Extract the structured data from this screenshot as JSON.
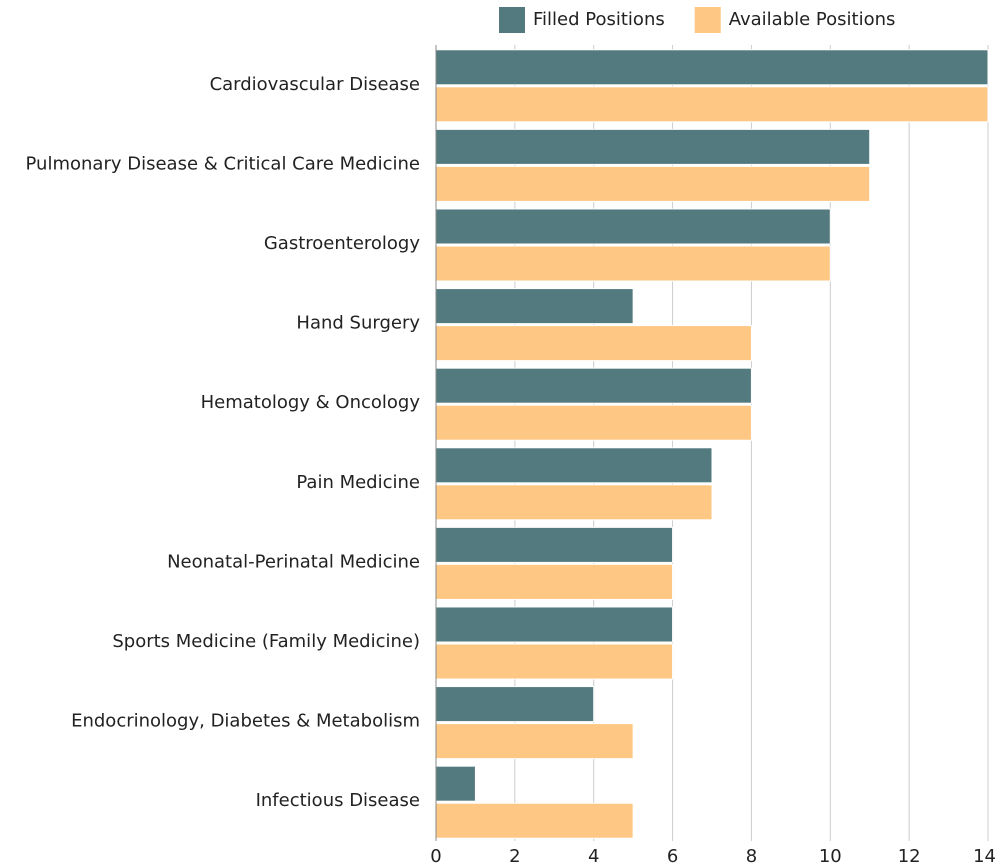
{
  "chart_data": {
    "type": "barh",
    "categories": [
      "Cardiovascular Disease",
      "Pulmonary Disease & Critical Care Medicine",
      "Gastroenterology",
      "Hand Surgery",
      "Hematology & Oncology",
      "Pain Medicine",
      "Neonatal-Perinatal Medicine",
      "Sports Medicine (Family Medicine)",
      "Endocrinology, Diabetes & Metabolism",
      "Infectious Disease"
    ],
    "series": [
      {
        "name": "Filled Positions",
        "color": "#537a7e",
        "values": [
          14,
          11,
          10,
          5,
          8,
          7,
          6,
          6,
          4,
          1
        ]
      },
      {
        "name": "Available Positions",
        "color": "#fec784",
        "values": [
          14,
          11,
          10,
          8,
          8,
          7,
          6,
          6,
          5,
          5
        ]
      }
    ],
    "xlim": [
      0,
      14
    ],
    "xticks": [
      0,
      2,
      4,
      6,
      8,
      10,
      12,
      14
    ],
    "grid": true,
    "legend": "top"
  }
}
